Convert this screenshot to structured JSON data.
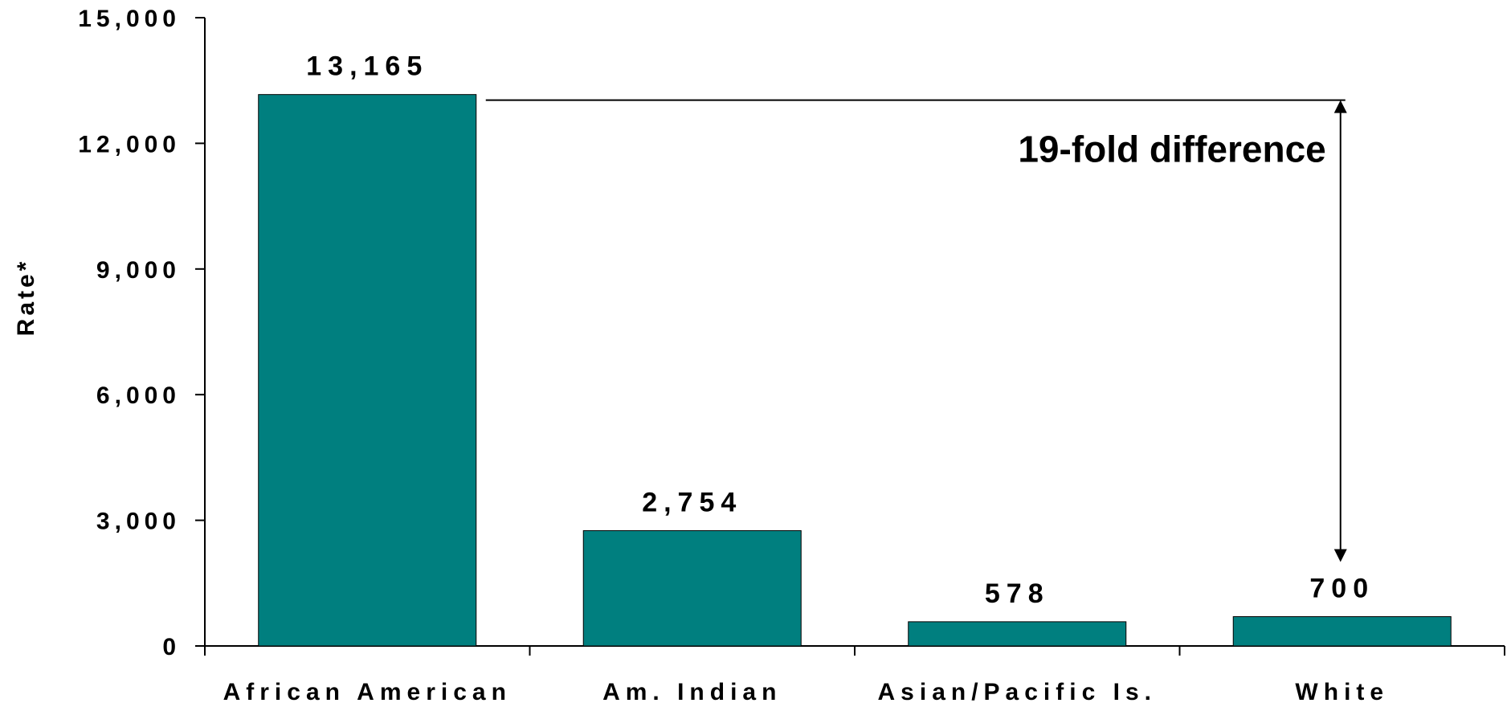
{
  "chart_data": {
    "type": "bar",
    "categories": [
      "African American",
      "Am. Indian",
      "Asian/Pacific Is.",
      "White"
    ],
    "values": [
      13165,
      2754,
      578,
      700
    ],
    "data_labels": [
      "13,165",
      "2,754",
      "578",
      "700"
    ],
    "ylabel": "Rate*",
    "ylim": [
      0,
      15000
    ],
    "yticks": [
      0,
      3000,
      6000,
      9000,
      12000,
      15000
    ],
    "ytick_labels": [
      "0",
      "3,000",
      "6,000",
      "9,000",
      "12,000",
      "15,000"
    ],
    "grid": false,
    "legend": "none",
    "bar_color": "#007F7F",
    "annotation": {
      "text": "19-fold difference",
      "from_category": "African American",
      "to_category": "White"
    }
  }
}
